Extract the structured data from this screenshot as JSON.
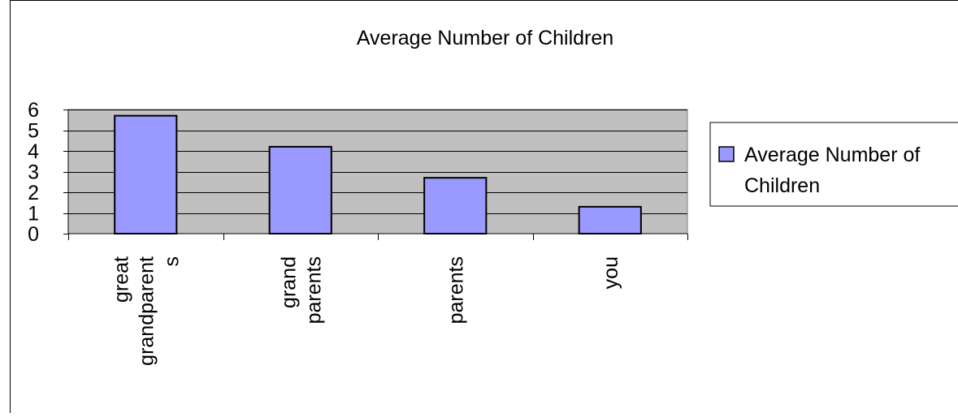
{
  "chart_data": {
    "type": "bar",
    "title": "Average Number of Children",
    "categories": [
      [
        "great",
        "grandparent",
        "s"
      ],
      [
        "grand",
        "parents"
      ],
      [
        "parents"
      ],
      [
        "you"
      ]
    ],
    "series": [
      {
        "name": "Average Number of Children",
        "values": [
          5.7,
          4.2,
          2.7,
          1.3
        ]
      }
    ],
    "legend": {
      "position": "right",
      "lines": [
        "Average Number of",
        "Children"
      ]
    },
    "ylim": [
      0,
      6
    ],
    "yticks": [
      0,
      1,
      2,
      3,
      4,
      5,
      6
    ],
    "grid": true,
    "xlabel": "",
    "ylabel": "",
    "colors": {
      "bar_fill": "#9999FF",
      "plot_bg": "#C0C0C0",
      "gridline": "#000000",
      "border": "#000000"
    }
  }
}
